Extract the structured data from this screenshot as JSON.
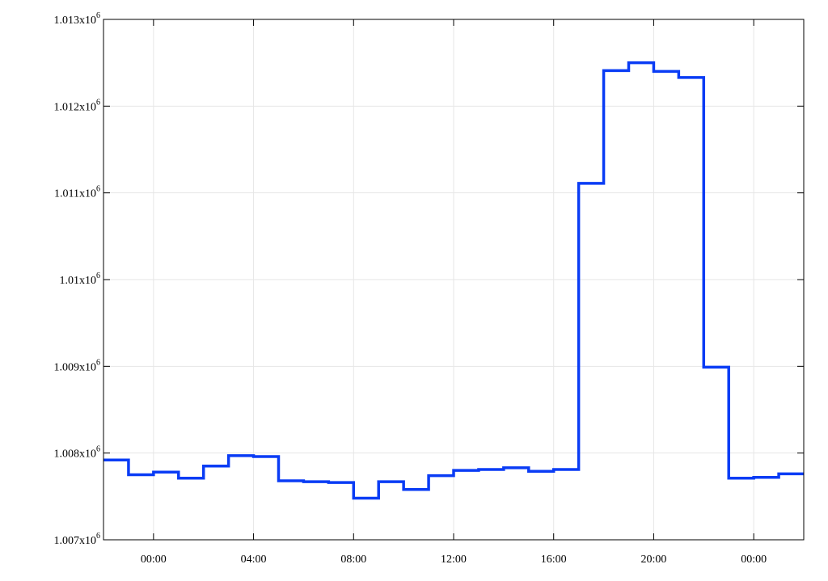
{
  "chart_data": {
    "type": "line",
    "step": true,
    "title": "",
    "xlabel": "",
    "ylabel": "",
    "grid": true,
    "legend": "none",
    "xlim": [
      -2,
      26
    ],
    "ylim": [
      1007000,
      1013000
    ],
    "x_ticks": [
      {
        "value": 0,
        "label": "00:00"
      },
      {
        "value": 4,
        "label": "04:00"
      },
      {
        "value": 8,
        "label": "08:00"
      },
      {
        "value": 12,
        "label": "12:00"
      },
      {
        "value": 16,
        "label": "16:00"
      },
      {
        "value": 20,
        "label": "20:00"
      },
      {
        "value": 24,
        "label": "00:00"
      }
    ],
    "y_ticks": [
      {
        "value": 1007000,
        "mantissa": "1.007x10",
        "exponent": "6"
      },
      {
        "value": 1008000,
        "mantissa": "1.008x10",
        "exponent": "6"
      },
      {
        "value": 1009000,
        "mantissa": "1.009x10",
        "exponent": "6"
      },
      {
        "value": 1010000,
        "mantissa": "1.01x10",
        "exponent": "6"
      },
      {
        "value": 1011000,
        "mantissa": "1.011x10",
        "exponent": "6"
      },
      {
        "value": 1012000,
        "mantissa": "1.012x10",
        "exponent": "6"
      },
      {
        "value": 1013000,
        "mantissa": "1.013x10",
        "exponent": "6"
      }
    ],
    "series": [
      {
        "color": "#0a3cf5",
        "x": [
          -2,
          -1,
          0,
          1,
          2,
          3,
          4,
          5,
          6,
          7,
          8,
          9,
          10,
          11,
          12,
          13,
          14,
          15,
          16,
          17,
          18,
          19,
          20,
          21,
          22,
          23,
          24,
          25,
          26
        ],
        "y": [
          1007920,
          1007750,
          1007780,
          1007710,
          1007850,
          1007970,
          1007960,
          1007680,
          1007670,
          1007660,
          1007480,
          1007670,
          1007580,
          1007740,
          1007800,
          1007810,
          1007830,
          1007790,
          1007810,
          1011110,
          1012410,
          1012500,
          1012400,
          1012330,
          1008990,
          1007710,
          1007720,
          1007760,
          1007760
        ]
      }
    ]
  }
}
